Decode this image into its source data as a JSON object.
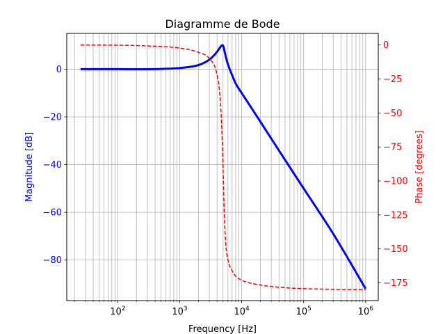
{
  "chart_data": {
    "type": "line",
    "title": "Diagramme de Bode",
    "xlabel": "Frequency [Hz]",
    "x_scale": "log",
    "xlim": [
      15,
      1600000
    ],
    "x_ticks": [
      100,
      1000,
      10000,
      100000,
      1000000
    ],
    "x_tick_labels": [
      {
        "base": "10",
        "exp": "2"
      },
      {
        "base": "10",
        "exp": "3"
      },
      {
        "base": "10",
        "exp": "4"
      },
      {
        "base": "10",
        "exp": "5"
      },
      {
        "base": "10",
        "exp": "6"
      }
    ],
    "grid": true,
    "left_axis": {
      "label": "Magnitude [dB]",
      "color": "#0000ff",
      "ylim": [
        -97,
        15
      ],
      "ticks": [
        0,
        -20,
        -40,
        -60,
        -80
      ],
      "tick_labels": [
        "0",
        "−20",
        "−40",
        "−60",
        "−80"
      ]
    },
    "right_axis": {
      "label": "Phase [degrees]",
      "color": "#ff0000",
      "ylim": [
        -188,
        8.5
      ],
      "ticks": [
        0,
        -25,
        -50,
        -75,
        -100,
        -125,
        -150,
        -175
      ],
      "tick_labels": [
        "0",
        "−25",
        "−50",
        "−75",
        "−100",
        "−125",
        "−150",
        "−175"
      ]
    },
    "series": [
      {
        "axis": "left",
        "color": "#0000ff",
        "style": "solid",
        "x": [
          25,
          100,
          500,
          1000,
          2000,
          3000,
          4000,
          4500,
          4800,
          5000,
          5200,
          5500,
          6000,
          7000,
          8000,
          10000,
          15000,
          20000,
          50000,
          100000,
          300000,
          1000000
        ],
        "y": [
          0,
          0,
          0.1,
          0.5,
          1.7,
          4,
          7.3,
          9.2,
          10,
          9.9,
          8.4,
          5.5,
          2,
          -2.5,
          -6,
          -10,
          -17,
          -22,
          -38,
          -50,
          -69,
          -92
        ]
      },
      {
        "axis": "right",
        "color": "#ff0000",
        "style": "dashed",
        "x": [
          25,
          100,
          300,
          1000,
          2000,
          3000,
          4000,
          4500,
          4800,
          5000,
          5200,
          5500,
          6000,
          7000,
          8000,
          10000,
          20000,
          50000,
          100000,
          300000,
          1000000
        ],
        "y": [
          0,
          -0.2,
          -0.7,
          -2.3,
          -5.4,
          -10,
          -22,
          -40,
          -65,
          -90,
          -120,
          -145,
          -158,
          -166,
          -170,
          -173,
          -176.5,
          -178.5,
          -179.2,
          -179.7,
          -179.9
        ]
      }
    ]
  }
}
